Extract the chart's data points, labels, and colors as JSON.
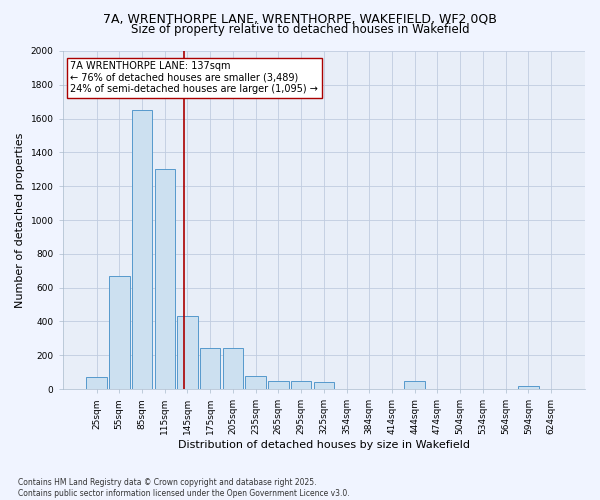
{
  "title_line1": "7A, WRENTHORPE LANE, WRENTHORPE, WAKEFIELD, WF2 0QB",
  "title_line2": "Size of property relative to detached houses in Wakefield",
  "xlabel": "Distribution of detached houses by size in Wakefield",
  "ylabel": "Number of detached properties",
  "categories": [
    "25sqm",
    "55sqm",
    "85sqm",
    "115sqm",
    "145sqm",
    "175sqm",
    "205sqm",
    "235sqm",
    "265sqm",
    "295sqm",
    "325sqm",
    "354sqm",
    "384sqm",
    "414sqm",
    "444sqm",
    "474sqm",
    "504sqm",
    "534sqm",
    "564sqm",
    "594sqm",
    "624sqm"
  ],
  "values": [
    70,
    670,
    1650,
    1300,
    430,
    240,
    240,
    80,
    50,
    50,
    40,
    0,
    0,
    0,
    50,
    0,
    0,
    0,
    0,
    20,
    0
  ],
  "bar_color": "#cce0f0",
  "bar_edge_color": "#5599cc",
  "vline_color": "#aa0000",
  "annotation_text": "7A WRENTHORPE LANE: 137sqm\n← 76% of detached houses are smaller (3,489)\n24% of semi-detached houses are larger (1,095) →",
  "annotation_box_color": "#ffffff",
  "annotation_box_edge_color": "#aa0000",
  "ylim": [
    0,
    2000
  ],
  "yticks": [
    0,
    200,
    400,
    600,
    800,
    1000,
    1200,
    1400,
    1600,
    1800,
    2000
  ],
  "footnote": "Contains HM Land Registry data © Crown copyright and database right 2025.\nContains public sector information licensed under the Open Government Licence v3.0.",
  "bg_color": "#f0f4ff",
  "plot_bg_color": "#e8eef8",
  "grid_color": "#c0cce0",
  "title_fontsize": 9,
  "subtitle_fontsize": 8.5,
  "tick_fontsize": 6.5,
  "label_fontsize": 8,
  "annotation_fontsize": 7,
  "footnote_fontsize": 5.5
}
